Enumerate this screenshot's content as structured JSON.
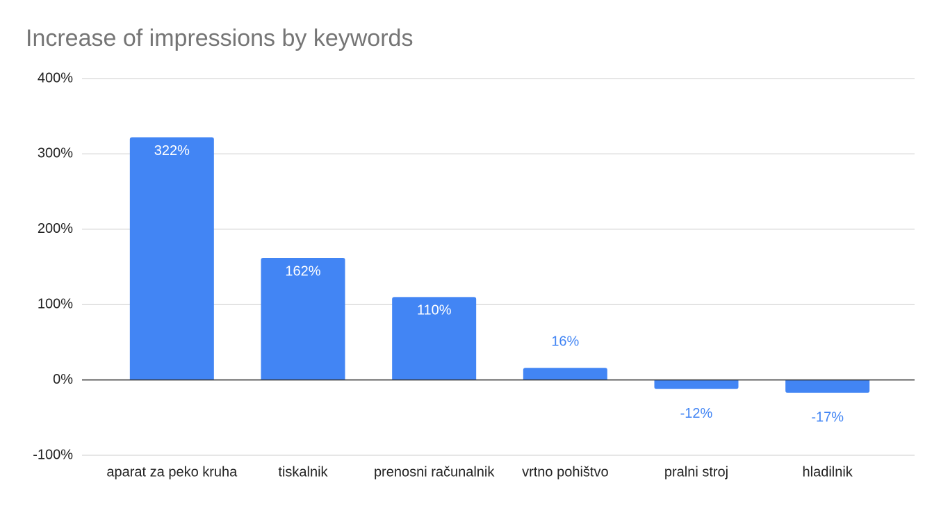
{
  "chart_data": {
    "type": "bar",
    "title": "Increase of impressions by keywords",
    "categories": [
      "aparat za peko kruha",
      "tiskalnik",
      "prenosni računalnik",
      "vrtno pohištvo",
      "pralni stroj",
      "hladilnik"
    ],
    "values": [
      322,
      162,
      110,
      16,
      -12,
      -17
    ],
    "value_labels": [
      "322%",
      "162%",
      "110%",
      "16%",
      "-12%",
      "-17%"
    ],
    "color": "#4285f4",
    "ylim": [
      -100,
      400
    ],
    "yticks": [
      {
        "value": -100,
        "label": "-100%"
      },
      {
        "value": 0,
        "label": "0%"
      },
      {
        "value": 100,
        "label": "100%"
      },
      {
        "value": 200,
        "label": "200%"
      },
      {
        "value": 300,
        "label": "300%"
      },
      {
        "value": 400,
        "label": "400%"
      }
    ],
    "grid": true
  }
}
